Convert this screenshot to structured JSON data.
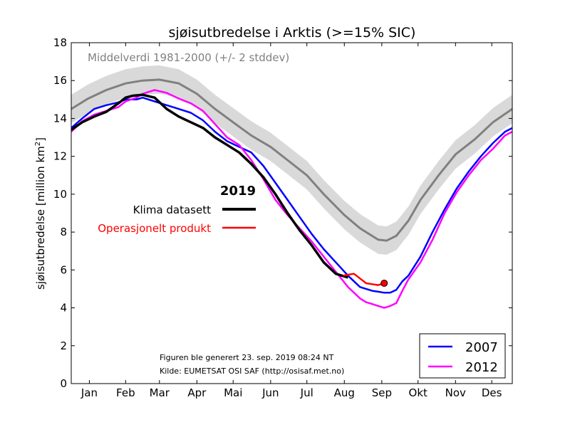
{
  "chart_data": {
    "type": "line",
    "title": "sjøisutbredelse i Arktis (>=15% SIC)",
    "ylabel": "sjøisutbredelse [million km",
    "ylabel_sup": "2",
    "ylabel_end": "]",
    "ylim": [
      0,
      18
    ],
    "yticks": [
      0,
      2,
      4,
      6,
      8,
      10,
      12,
      14,
      16,
      18
    ],
    "xlim": [
      1,
      366
    ],
    "months": [
      {
        "label": "Jan",
        "day": 16
      },
      {
        "label": "Feb",
        "day": 46
      },
      {
        "label": "Mar",
        "day": 74
      },
      {
        "label": "Apr",
        "day": 105
      },
      {
        "label": "Mai",
        "day": 135
      },
      {
        "label": "Jun",
        "day": 166
      },
      {
        "label": "Jul",
        "day": 196
      },
      {
        "label": "Aug",
        "day": 227
      },
      {
        "label": "Sep",
        "day": 258
      },
      {
        "label": "Okt",
        "day": 288
      },
      {
        "label": "Nov",
        "day": 319
      },
      {
        "label": "Des",
        "day": 349
      }
    ],
    "mean_label": "Middelverdi 1981-2000 (+/- 2 stddev)",
    "mean": {
      "color": "#808080",
      "band_color": "#d9d9d9",
      "band_halfwidth": 0.75,
      "x": [
        1,
        15,
        30,
        46,
        60,
        74,
        90,
        105,
        120,
        135,
        150,
        166,
        180,
        196,
        210,
        227,
        240,
        255,
        262,
        270,
        280,
        290,
        305,
        319,
        335,
        350,
        366
      ],
      "y": [
        14.5,
        15.05,
        15.5,
        15.85,
        16.0,
        16.05,
        15.85,
        15.3,
        14.5,
        13.8,
        13.1,
        12.5,
        11.8,
        11.0,
        10.0,
        8.9,
        8.2,
        7.6,
        7.55,
        7.8,
        8.6,
        9.7,
        11.0,
        12.1,
        12.9,
        13.8,
        14.5
      ]
    },
    "series": [
      {
        "name": "2007",
        "color": "#0000ff",
        "x": [
          1,
          10,
          20,
          30,
          40,
          46,
          55,
          60,
          70,
          80,
          90,
          100,
          110,
          120,
          130,
          140,
          150,
          160,
          170,
          180,
          190,
          200,
          210,
          220,
          230,
          240,
          250,
          255,
          260,
          265,
          270,
          275,
          280,
          290,
          300,
          310,
          320,
          330,
          340,
          350,
          360,
          366
        ],
        "y": [
          13.5,
          14.0,
          14.5,
          14.7,
          14.85,
          15.0,
          15.0,
          15.1,
          14.9,
          14.7,
          14.5,
          14.3,
          13.9,
          13.3,
          12.8,
          12.5,
          12.2,
          11.5,
          10.6,
          9.7,
          8.8,
          7.9,
          7.1,
          6.4,
          5.7,
          5.1,
          4.9,
          4.85,
          4.8,
          4.8,
          4.95,
          5.4,
          5.7,
          6.7,
          8.0,
          9.2,
          10.3,
          11.2,
          12.0,
          12.7,
          13.3,
          13.5
        ]
      },
      {
        "name": "2012",
        "color": "#ff00ff",
        "x": [
          1,
          10,
          20,
          30,
          40,
          46,
          55,
          60,
          70,
          80,
          90,
          100,
          110,
          120,
          130,
          140,
          150,
          160,
          170,
          180,
          190,
          200,
          210,
          220,
          230,
          240,
          245,
          250,
          255,
          260,
          265,
          270,
          275,
          280,
          290,
          300,
          310,
          320,
          330,
          340,
          350,
          360,
          366
        ],
        "y": [
          13.3,
          13.85,
          14.2,
          14.4,
          14.6,
          14.9,
          15.1,
          15.3,
          15.5,
          15.35,
          15.05,
          14.8,
          14.4,
          13.7,
          13.0,
          12.6,
          11.8,
          10.8,
          9.7,
          8.9,
          8.2,
          7.5,
          6.7,
          5.9,
          5.1,
          4.5,
          4.3,
          4.2,
          4.1,
          4.0,
          4.1,
          4.25,
          4.9,
          5.5,
          6.4,
          7.6,
          9.0,
          10.1,
          11.0,
          11.8,
          12.4,
          13.1,
          13.3
        ]
      }
    ],
    "series_2019": [
      {
        "name": "Klima datasett",
        "color": "#000000",
        "x": [
          1,
          10,
          20,
          30,
          40,
          46,
          52,
          60,
          70,
          80,
          90,
          100,
          110,
          120,
          130,
          140,
          150,
          160,
          170,
          180,
          190,
          200,
          210,
          220,
          230
        ],
        "y": [
          13.4,
          13.8,
          14.1,
          14.35,
          14.8,
          15.1,
          15.2,
          15.25,
          15.1,
          14.5,
          14.1,
          13.8,
          13.5,
          13.0,
          12.6,
          12.2,
          11.6,
          10.9,
          10.0,
          9.0,
          8.1,
          7.3,
          6.4,
          5.8,
          5.6
        ]
      },
      {
        "name": "Operasjonelt produkt",
        "color": "#ff0000",
        "x": [
          226,
          230,
          235,
          240,
          245,
          250,
          255,
          260
        ],
        "y": [
          5.7,
          5.75,
          5.8,
          5.55,
          5.3,
          5.25,
          5.2,
          5.3
        ]
      }
    ],
    "last_point": {
      "x": 260,
      "y": 5.3,
      "color": "#ff0000"
    },
    "legend_2019_title": "2019",
    "legend_2019": [
      {
        "label": "Klima datasett",
        "color": "#000000"
      },
      {
        "label": "Operasjonelt produkt",
        "color": "#ff0000"
      }
    ],
    "legend": {
      "placement": "bottom-right",
      "entries": [
        {
          "label": "2007",
          "color": "#0000ff"
        },
        {
          "label": "2012",
          "color": "#ff00ff"
        }
      ]
    },
    "footnote": [
      "Figuren ble generert 23. sep. 2019 08:24 NT",
      "Kilde: EUMETSAT OSI SAF (http://osisaf.met.no)"
    ]
  }
}
